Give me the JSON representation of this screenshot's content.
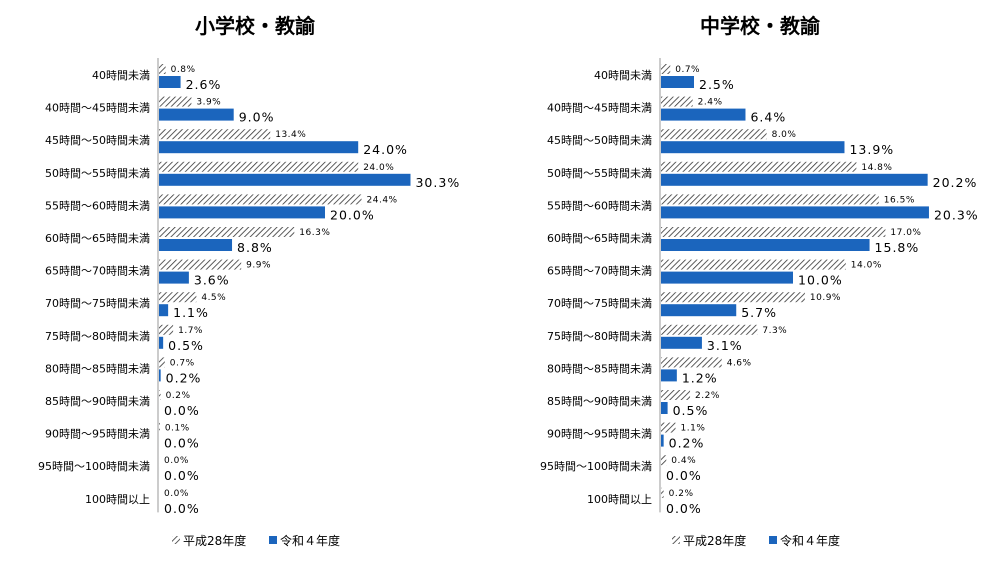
{
  "colors": {
    "r4": "#1b65bd",
    "h28_hatch": "#333333",
    "axis": "#999999"
  },
  "legend": {
    "h28": "平成28年度",
    "r4": "令和４年度"
  },
  "chart_data": [
    {
      "type": "bar",
      "orientation": "horizontal",
      "title": "小学校・教諭",
      "categories": [
        "40時間未満",
        "40時間～45時間未満",
        "45時間～50時間未満",
        "50時間～55時間未満",
        "55時間～60時間未満",
        "60時間～65時間未満",
        "65時間～70時間未満",
        "70時間～75時間未満",
        "75時間～80時間未満",
        "80時間～85時間未満",
        "85時間～90時間未満",
        "90時間～95時間未満",
        "95時間～100時間未満",
        "100時間以上"
      ],
      "unit": "%",
      "series": [
        {
          "name": "平成28年度",
          "pattern": "hatched",
          "values": [
            0.8,
            3.9,
            13.4,
            24.0,
            24.4,
            16.3,
            9.9,
            4.5,
            1.7,
            0.7,
            0.2,
            0.1,
            0.0,
            0.0
          ]
        },
        {
          "name": "令和４年度",
          "color": "#1b65bd",
          "values": [
            2.6,
            9.0,
            24.0,
            30.3,
            20.0,
            8.8,
            3.6,
            1.1,
            0.5,
            0.2,
            0.0,
            0.0,
            0.0,
            0.0
          ]
        }
      ],
      "legend_position": "bottom",
      "grid": false
    },
    {
      "type": "bar",
      "orientation": "horizontal",
      "title": "中学校・教諭",
      "categories": [
        "40時間未満",
        "40時間～45時間未満",
        "45時間～50時間未満",
        "50時間～55時間未満",
        "55時間～60時間未満",
        "60時間～65時間未満",
        "65時間～70時間未満",
        "70時間～75時間未満",
        "75時間～80時間未満",
        "80時間～85時間未満",
        "85時間～90時間未満",
        "90時間～95時間未満",
        "95時間～100時間未満",
        "100時間以上"
      ],
      "unit": "%",
      "series": [
        {
          "name": "平成28年度",
          "pattern": "hatched",
          "values": [
            0.7,
            2.4,
            8.0,
            14.8,
            16.5,
            17.0,
            14.0,
            10.9,
            7.3,
            4.6,
            2.2,
            1.1,
            0.4,
            0.2
          ]
        },
        {
          "name": "令和４年度",
          "color": "#1b65bd",
          "values": [
            2.5,
            6.4,
            13.9,
            20.2,
            20.3,
            15.8,
            10.0,
            5.7,
            3.1,
            1.2,
            0.5,
            0.2,
            0.0,
            0.0
          ]
        }
      ],
      "legend_position": "bottom",
      "grid": false
    }
  ]
}
